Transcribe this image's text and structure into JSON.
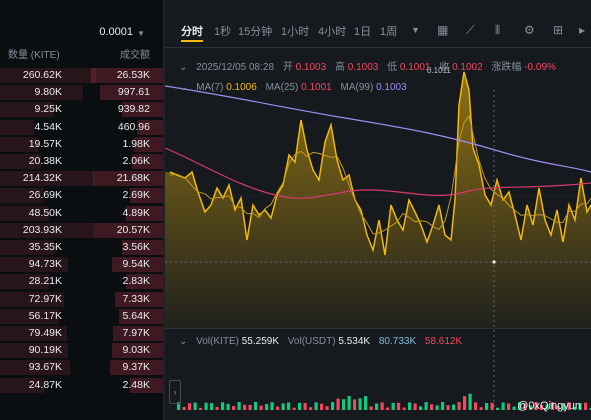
{
  "orderbook": {
    "precision": "0.0001",
    "col_amount": "数量 (KITE)",
    "col_total": "成交额",
    "rows": [
      {
        "amount": "260.62K",
        "total": "26.53K",
        "depth": 0.98
      },
      {
        "amount": "9.80K",
        "total": "997.61",
        "depth": 0.85
      },
      {
        "amount": "9.25K",
        "total": "939.82",
        "depth": 0.55
      },
      {
        "amount": "4.54K",
        "total": "460.96",
        "depth": 0.35
      },
      {
        "amount": "19.57K",
        "total": "1.98K",
        "depth": 0.4
      },
      {
        "amount": "20.38K",
        "total": "2.06K",
        "depth": 0.42
      },
      {
        "amount": "214.32K",
        "total": "21.68K",
        "depth": 0.96
      },
      {
        "amount": "26.69K",
        "total": "2.69K",
        "depth": 0.45
      },
      {
        "amount": "48.50K",
        "total": "4.89K",
        "depth": 0.5
      },
      {
        "amount": "203.93K",
        "total": "20.57K",
        "depth": 0.95
      },
      {
        "amount": "35.35K",
        "total": "3.56K",
        "depth": 0.55
      },
      {
        "amount": "94.73K",
        "total": "9.54K",
        "depth": 0.7
      },
      {
        "amount": "28.21K",
        "total": "2.83K",
        "depth": 0.5
      },
      {
        "amount": "72.97K",
        "total": "7.33K",
        "depth": 0.65
      },
      {
        "amount": "56.17K",
        "total": "5.64K",
        "depth": 0.6
      },
      {
        "amount": "79.49K",
        "total": "7.97K",
        "depth": 0.68
      },
      {
        "amount": "90.19K",
        "total": "9.03K",
        "depth": 0.7
      },
      {
        "amount": "93.67K",
        "total": "9.37K",
        "depth": 0.72
      },
      {
        "amount": "24.87K",
        "total": "2.48K",
        "depth": 0.45
      }
    ]
  },
  "toolbar": {
    "tabs": [
      "分时",
      "1秒",
      "15分钟",
      "1小时",
      "4小时",
      "1日",
      "1周"
    ],
    "active_tab": "分时",
    "icons": [
      "chevron-down-icon",
      "calendar-icon",
      "drawing-icon",
      "candle-style-icon",
      "settings-icon",
      "grid-icon"
    ]
  },
  "ohlc": {
    "date": "2025/12/05 08:28",
    "open_label": "开",
    "open": "0.1003",
    "high_label": "高",
    "high": "0.1003",
    "low_label": "低",
    "low": "0.1001",
    "close_label": "收",
    "close": "0.1002",
    "change_label": "涨跌幅",
    "change": "-0.09%"
  },
  "ma": {
    "ma7_label": "MA(7)",
    "ma7": "0.1006",
    "ma25_label": "MA(25)",
    "ma25": "0.1001",
    "ma99_label": "MA(99)",
    "ma99": "0.1003"
  },
  "high_marker": "0.1011",
  "volume": {
    "vol_kite_label": "Vol(KITE)",
    "vol_kite": "55.259K",
    "vol_usdt_label": "Vol(USDT)",
    "vol_usdt": "5.534K",
    "v1": "80.733K",
    "v2": "58.612K"
  },
  "watermark": "@0xQingyun",
  "colors": {
    "accent": "#f0b90b",
    "down": "#f6465d",
    "up": "#0ecb81",
    "ma99": "#a18cf2",
    "ma25": "#d63a6e"
  }
}
